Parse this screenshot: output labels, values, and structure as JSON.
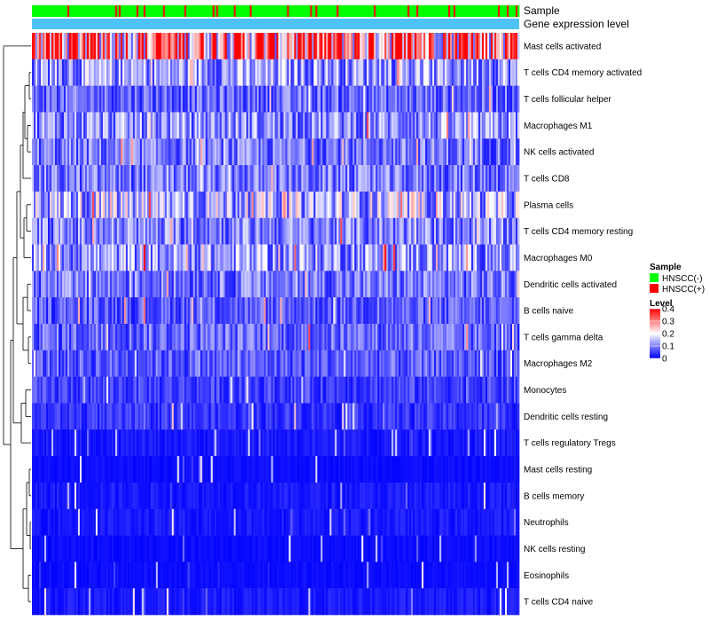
{
  "chart_data": {
    "type": "heatmap",
    "annotation_labels": [
      "Sample",
      "Gene expression level"
    ],
    "rows": [
      "Mast cells activated",
      "T cells CD4 memory activated",
      "T cells follicular helper",
      "Macrophages M1",
      "NK cells activated",
      "T cells CD8",
      "Plasma cells",
      "T cells CD4 memory resting",
      "Macrophages M0",
      "Dendritic cells activated",
      "B cells naive",
      "T cells gamma delta",
      "Macrophages M2",
      "Monocytes",
      "Dendritic cells resting",
      "T cells regulatory  Tregs",
      "Mast cells resting",
      "B cells memory",
      "Neutrophils",
      "NK cells resting",
      "Eosinophils",
      "T cells CD4 naive"
    ],
    "row_mean_levels": [
      0.3,
      0.12,
      0.08,
      0.11,
      0.09,
      0.09,
      0.14,
      0.1,
      0.12,
      0.09,
      0.07,
      0.08,
      0.07,
      0.05,
      0.04,
      0.02,
      0.01,
      0.02,
      0.02,
      0.01,
      0.01,
      0.02
    ],
    "n_samples": 275,
    "sample_groups": [
      "HNSCC(-)",
      "HNSCC(+)"
    ],
    "group_colors": {
      "HNSCC(-)": "#00ff00",
      "HNSCC(+)": "#ff0000"
    },
    "legend_sample": {
      "title": "Sample",
      "items": [
        {
          "label": "HNSCC(-)",
          "color": "#00ff00"
        },
        {
          "label": "HNSCC(+)",
          "color": "#ff0000"
        }
      ]
    },
    "legend_level": {
      "title": "Level",
      "ticks": [
        "0.4",
        "0.3",
        "0.2",
        "0.1",
        "0"
      ],
      "range": [
        0,
        0.4
      ]
    },
    "color_scale": {
      "low": "#0000ff",
      "mid": "#ffffff",
      "high": "#ff0000"
    },
    "gene_expression_color": "#4fc3f7"
  }
}
